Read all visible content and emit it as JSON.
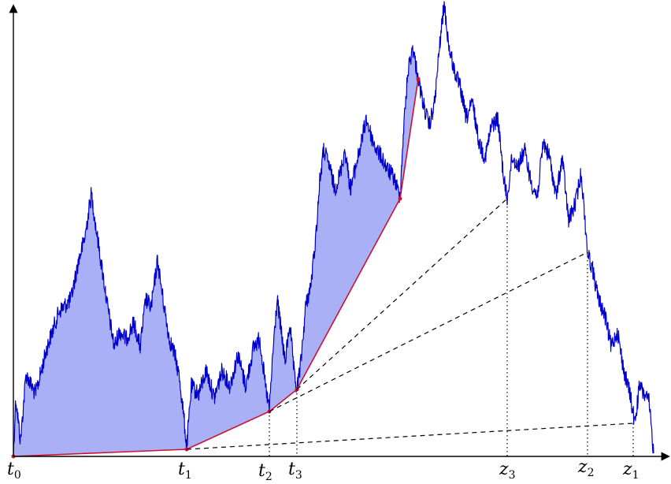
{
  "diagram": {
    "labels": [
      {
        "id": "t0",
        "base": "t",
        "sub": "0"
      },
      {
        "id": "t1",
        "base": "t",
        "sub": "1"
      },
      {
        "id": "t2",
        "base": "t",
        "sub": "2"
      },
      {
        "id": "t3",
        "base": "t",
        "sub": "3"
      },
      {
        "id": "z3",
        "base": "z",
        "sub": "3"
      },
      {
        "id": "z2",
        "base": "z",
        "sub": "2"
      },
      {
        "id": "z1",
        "base": "z",
        "sub": "1"
      }
    ],
    "colors": {
      "path": "#0000cc",
      "fill": "#aab0f5",
      "hull": "#cc1133",
      "axis": "#000000",
      "guide": "#000000"
    }
  }
}
